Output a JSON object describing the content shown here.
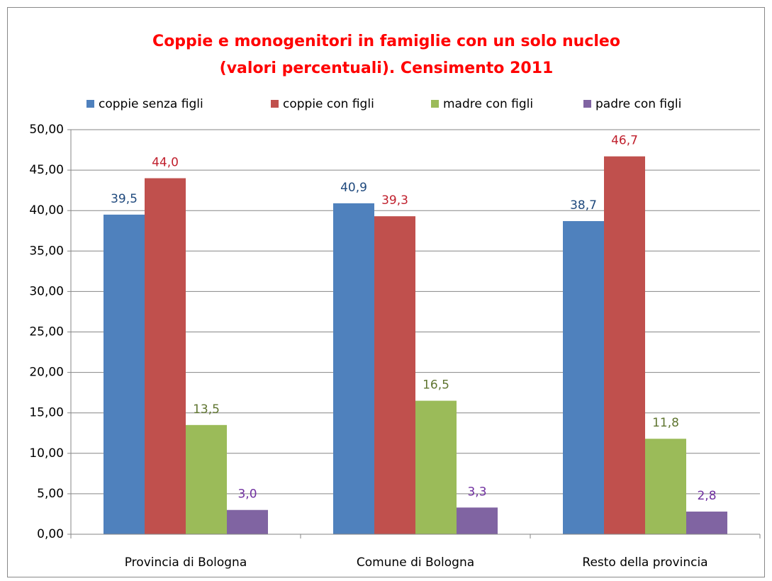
{
  "chart_data": {
    "type": "bar",
    "title": [
      "Coppie e monogenitori in famiglie con un solo nucleo",
      "(valori percentuali). Censimento 2011"
    ],
    "categories": [
      "Provincia di Bologna",
      "Comune di Bologna",
      "Resto della provincia"
    ],
    "series": [
      {
        "name": "coppie senza figli",
        "color": "#4f81bd",
        "label_color": "#1f497d",
        "values": [
          39.5,
          40.9,
          38.7
        ],
        "value_labels": [
          "39,5",
          "40,9",
          "38,7"
        ]
      },
      {
        "name": "coppie con figli",
        "color": "#c0504d",
        "label_color": "#c0202d",
        "values": [
          44.0,
          39.3,
          46.7
        ],
        "value_labels": [
          "44,0",
          "39,3",
          "46,7"
        ]
      },
      {
        "name": "madre con figli",
        "color": "#9bbb59",
        "label_color": "#5f7530",
        "values": [
          13.5,
          16.5,
          11.8
        ],
        "value_labels": [
          "13,5",
          "16,5",
          "11,8"
        ]
      },
      {
        "name": "padre con figli",
        "color": "#8064a2",
        "label_color": "#7030a0",
        "values": [
          3.0,
          3.3,
          2.8
        ],
        "value_labels": [
          "3,0",
          "3,3",
          "2,8"
        ]
      }
    ],
    "ylim": [
      0,
      50
    ],
    "yticks": [
      {
        "value": 0,
        "label": "0,00"
      },
      {
        "value": 5,
        "label": "5,00"
      },
      {
        "value": 10,
        "label": "10,00"
      },
      {
        "value": 15,
        "label": "15,00"
      },
      {
        "value": 20,
        "label": "20,00"
      },
      {
        "value": 25,
        "label": "25,00"
      },
      {
        "value": 30,
        "label": "30,00"
      },
      {
        "value": 35,
        "label": "35,00"
      },
      {
        "value": 40,
        "label": "40,00"
      },
      {
        "value": 45,
        "label": "45,00"
      },
      {
        "value": 50,
        "label": "50,00"
      }
    ],
    "grid": true,
    "legend": "top"
  }
}
